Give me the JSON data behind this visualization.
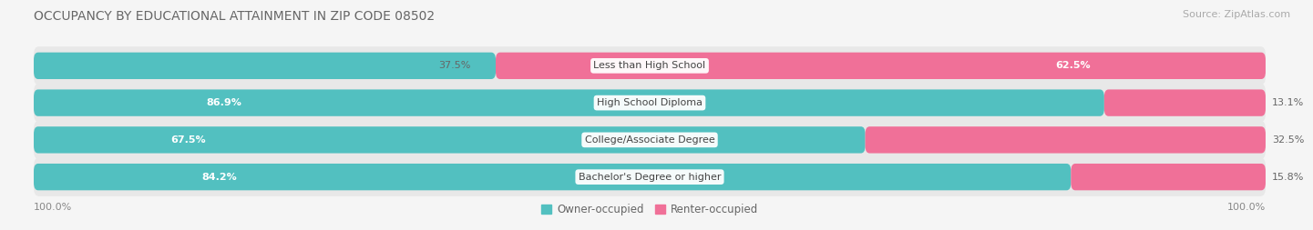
{
  "title": "OCCUPANCY BY EDUCATIONAL ATTAINMENT IN ZIP CODE 08502",
  "source": "Source: ZipAtlas.com",
  "categories": [
    "Less than High School",
    "High School Diploma",
    "College/Associate Degree",
    "Bachelor's Degree or higher"
  ],
  "owner_values": [
    37.5,
    86.9,
    67.5,
    84.2
  ],
  "renter_values": [
    62.5,
    13.1,
    32.5,
    15.8
  ],
  "owner_color": "#52C0C0",
  "renter_color": "#F07098",
  "bg_color": "#f5f5f5",
  "row_bg_color": "#e8e8e8",
  "title_fontsize": 10,
  "bar_label_fontsize": 8,
  "source_fontsize": 8,
  "legend_fontsize": 8.5,
  "category_fontsize": 8,
  "x_axis_label": "100.0%"
}
